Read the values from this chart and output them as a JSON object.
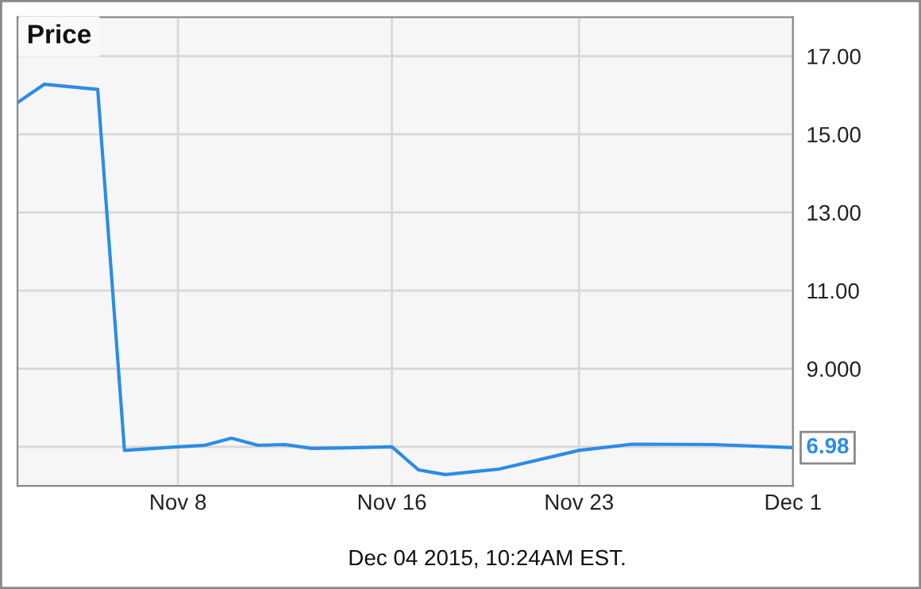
{
  "chart_data": {
    "type": "line",
    "title": "Price",
    "x": [
      "2015-11-02",
      "2015-11-03",
      "2015-11-05",
      "2015-11-06",
      "2015-11-08",
      "2015-11-09",
      "2015-11-10",
      "2015-11-11",
      "2015-11-12",
      "2015-11-13",
      "2015-11-14",
      "2015-11-16",
      "2015-11-17",
      "2015-11-18",
      "2015-11-19",
      "2015-11-20",
      "2015-11-23",
      "2015-11-25",
      "2015-11-28",
      "2015-12-01"
    ],
    "series": [
      {
        "color": "#2b8ce6",
        "values": [
          15.81,
          16.28,
          16.15,
          6.91,
          7.0,
          7.04,
          7.22,
          7.04,
          7.06,
          6.96,
          6.97,
          7.0,
          6.41,
          6.29,
          6.36,
          6.43,
          6.91,
          7.07,
          7.06,
          6.98
        ]
      }
    ],
    "xlim": [
      "2015-11-02",
      "2015-12-01"
    ],
    "xticks": [
      {
        "value": "2015-11-08",
        "label": "Nov 8"
      },
      {
        "value": "2015-11-16",
        "label": "Nov 16"
      },
      {
        "value": "2015-11-23",
        "label": "Nov 23"
      },
      {
        "value": "2015-12-01",
        "label": "Dec 1"
      }
    ],
    "ylim": [
      6,
      18
    ],
    "yticks": [
      {
        "value": 7,
        "label": null
      },
      {
        "value": 9,
        "label": "9.000"
      },
      {
        "value": 11,
        "label": "11.00"
      },
      {
        "value": 13,
        "label": "13.00"
      },
      {
        "value": 15,
        "label": "15.00"
      },
      {
        "value": 17,
        "label": "17.00"
      }
    ],
    "grid": true,
    "annotations": [
      {
        "text": "6.98",
        "x": "2015-12-01",
        "y": 6.98
      },
      "Dec 04 2015, 10:24AM EST."
    ]
  }
}
